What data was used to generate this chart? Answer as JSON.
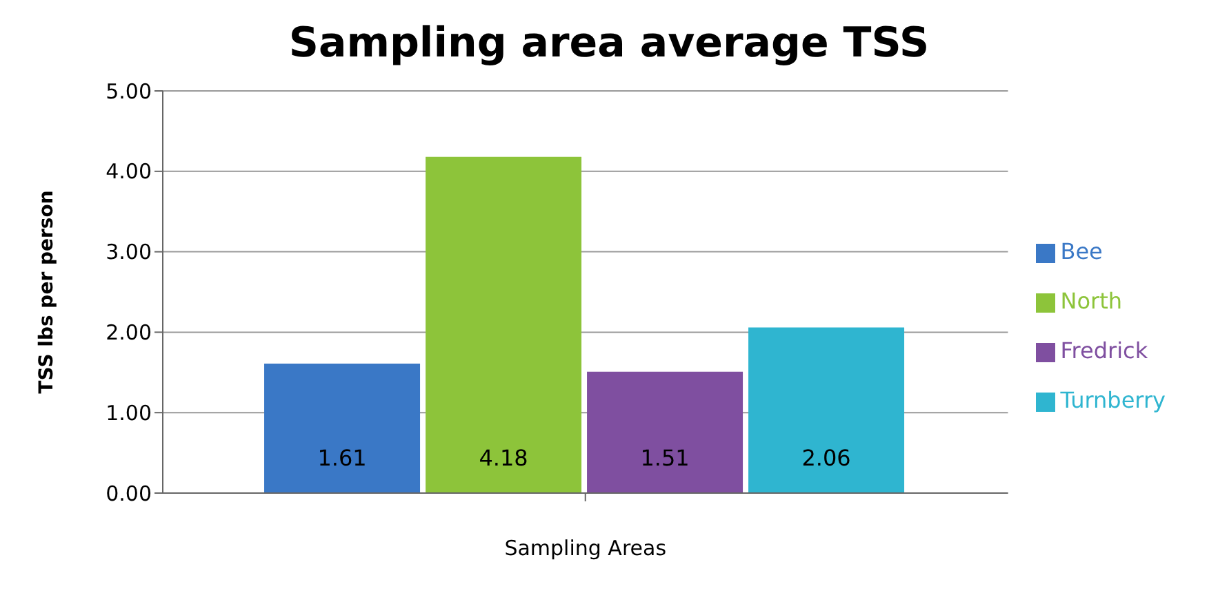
{
  "chart_data": {
    "type": "bar",
    "title": "Sampling area average TSS",
    "xlabel": "Sampling Areas",
    "ylabel": "TSS lbs per person",
    "categories": [
      null
    ],
    "series": [
      {
        "name": "Bee",
        "color": "#3a78c6",
        "values": [
          1.61
        ]
      },
      {
        "name": "North",
        "color": "#8dc43a",
        "values": [
          4.18
        ]
      },
      {
        "name": "Fredrick",
        "color": "#7f4fa0",
        "values": [
          1.51
        ]
      },
      {
        "name": "Turnberry",
        "color": "#2fb5d0",
        "values": [
          2.06
        ]
      }
    ],
    "ylim": [
      0,
      5
    ],
    "yticks": [
      {
        "value": 0,
        "label": "0.00"
      },
      {
        "value": 1,
        "label": "1.00"
      },
      {
        "value": 2,
        "label": "2.00"
      },
      {
        "value": 3,
        "label": "3.00"
      },
      {
        "value": 4,
        "label": "4.00"
      },
      {
        "value": 5,
        "label": "5.00"
      }
    ],
    "grid": "y",
    "legend": "right",
    "data_labels": true
  }
}
